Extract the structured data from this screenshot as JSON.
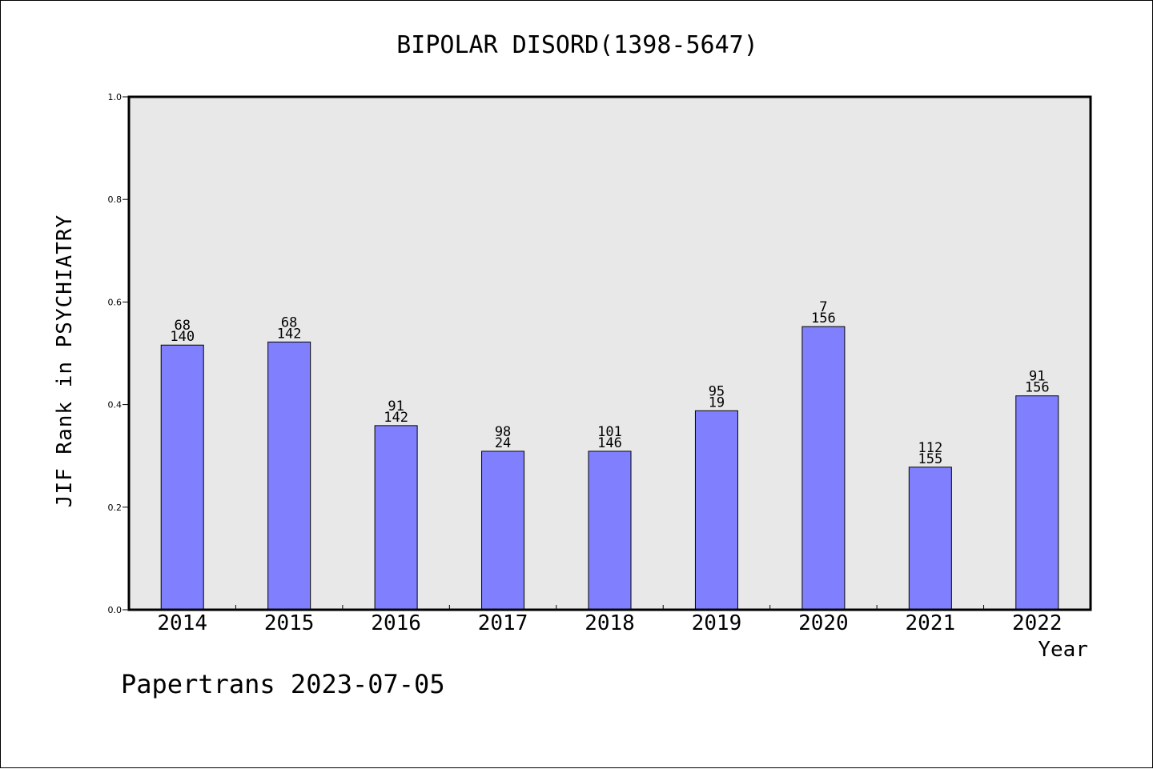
{
  "chart_data": {
    "type": "bar",
    "title": "BIPOLAR DISORD(1398-5647)",
    "xlabel": "Year",
    "ylabel": "JIF Rank in PSYCHIATRY",
    "ylim": [
      0,
      1.0
    ],
    "yticks": [
      "0.0",
      "0.2",
      "0.4",
      "0.6",
      "0.8",
      "1.0"
    ],
    "grid": false,
    "categories": [
      "2014",
      "2015",
      "2016",
      "2017",
      "2018",
      "2019",
      "2020",
      "2021",
      "2022"
    ],
    "values": [
      0.516,
      0.522,
      0.359,
      0.309,
      0.309,
      0.388,
      0.552,
      0.278,
      0.417
    ],
    "annotations": [
      {
        "rank": "68",
        "total": "140"
      },
      {
        "rank": "68",
        "total": "142"
      },
      {
        "rank": "91",
        "total": "142"
      },
      {
        "rank": "98",
        "total": "24"
      },
      {
        "rank": "101",
        "total": "146"
      },
      {
        "rank": "95",
        "total": "19"
      },
      {
        "rank": "7",
        "total": "156"
      },
      {
        "rank": "112",
        "total": "155"
      },
      {
        "rank": "91",
        "total": "156"
      }
    ],
    "colors": {
      "bar": "#8080ff",
      "plot_background": "#e8e8e8",
      "axis": "#000000"
    }
  },
  "footer": "Papertrans 2023-07-05"
}
